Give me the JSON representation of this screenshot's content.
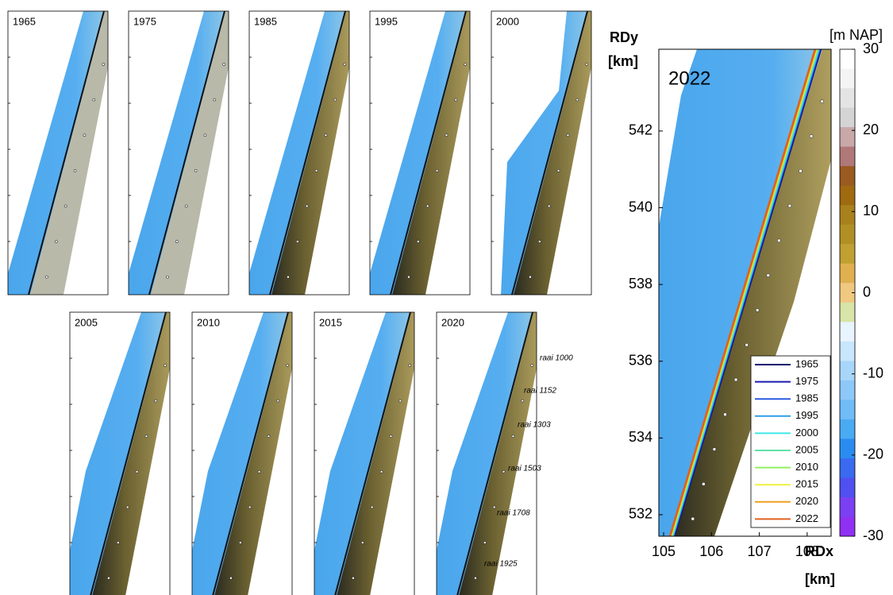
{
  "panels": [
    "1965",
    "1975",
    "1985",
    "1995",
    "2000",
    "2005",
    "2010",
    "2015",
    "2020"
  ],
  "raai_labels": [
    "raai 1000",
    "raai 1152",
    "raai 1303",
    "raai 1503",
    "raai 1708",
    "raai 1925"
  ],
  "main_map": {
    "title": "2022",
    "x_label": "RDx",
    "x_unit": "[km]",
    "y_label": "RDy",
    "y_unit": "[km]",
    "xlim": [
      104.9,
      108.5
    ],
    "xticks": [
      105,
      106,
      107,
      108
    ],
    "ylim": [
      531.44,
      544.13
    ],
    "yticks": [
      532,
      534,
      536,
      538,
      540,
      542
    ]
  },
  "colorbar": {
    "label": "[m NAP]",
    "lim": [
      -30,
      30
    ],
    "ticks": [
      30,
      20,
      10,
      0,
      -10,
      -20,
      -30
    ],
    "colors": [
      "#ffffff",
      "#f4f4f4",
      "#e4e4e4",
      "#d4d4d4",
      "#c8a8a8",
      "#b07878",
      "#9a5a20",
      "#a06a10",
      "#a8801c",
      "#b09024",
      "#c0a030",
      "#e0b050",
      "#f0c880",
      "#d8e4a8",
      "#e8f4ff",
      "#c8e6fc",
      "#a8d6fa",
      "#8cc8f8",
      "#70bcf6",
      "#4aaaf2",
      "#2a8cf0",
      "#3a6af0",
      "#5050f0",
      "#7a40f2",
      "#9030f2"
    ]
  },
  "legend": [
    {
      "name": "1965",
      "color": "#0a0a70"
    },
    {
      "name": "1975",
      "color": "#1a1ab0"
    },
    {
      "name": "1985",
      "color": "#2a5ae0"
    },
    {
      "name": "1995",
      "color": "#2aa0e8"
    },
    {
      "name": "2000",
      "color": "#40e8e8"
    },
    {
      "name": "2005",
      "color": "#60e0a8"
    },
    {
      "name": "2010",
      "color": "#90f060"
    },
    {
      "name": "2015",
      "color": "#f0f040"
    },
    {
      "name": "2020",
      "color": "#f0a020"
    },
    {
      "name": "2022",
      "color": "#e06020"
    }
  ]
}
